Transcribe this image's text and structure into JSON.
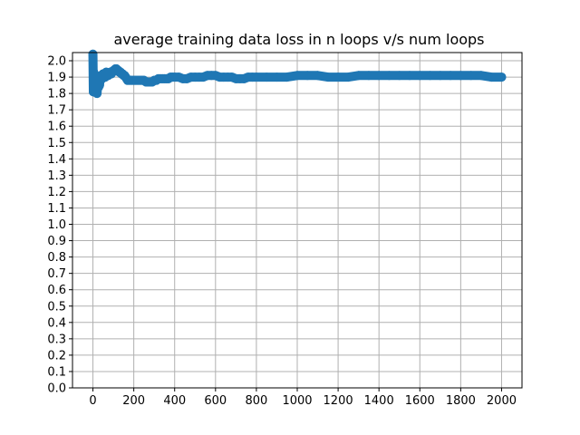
{
  "chart_data": {
    "type": "scatter",
    "title": "average training data loss in n loops v/s num loops",
    "xlabel": "",
    "ylabel": "",
    "xlim": [
      -100,
      2100
    ],
    "ylim": [
      0.0,
      2.05
    ],
    "x_ticks": [
      0,
      200,
      400,
      600,
      800,
      1000,
      1200,
      1400,
      1600,
      1800,
      2000
    ],
    "y_ticks": [
      0.0,
      0.1,
      0.2,
      0.3,
      0.4,
      0.5,
      0.6,
      0.7,
      0.8,
      0.9,
      1.0,
      1.1,
      1.2,
      1.3,
      1.4,
      1.5,
      1.6,
      1.7,
      1.8,
      1.9,
      2.0
    ],
    "grid": true,
    "series": [
      {
        "color": "#1f77b4",
        "points": [
          [
            0,
            2.04
          ],
          [
            2,
            1.81
          ],
          [
            4,
            1.93
          ],
          [
            6,
            1.88
          ],
          [
            8,
            1.87
          ],
          [
            10,
            1.9
          ],
          [
            12,
            1.84
          ],
          [
            15,
            1.86
          ],
          [
            18,
            1.82
          ],
          [
            20,
            1.8
          ],
          [
            22,
            1.83
          ],
          [
            25,
            1.86
          ],
          [
            28,
            1.84
          ],
          [
            30,
            1.87
          ],
          [
            32,
            1.85
          ],
          [
            35,
            1.88
          ],
          [
            38,
            1.9
          ],
          [
            40,
            1.91
          ],
          [
            45,
            1.89
          ],
          [
            50,
            1.92
          ],
          [
            55,
            1.91
          ],
          [
            60,
            1.9
          ],
          [
            65,
            1.93
          ],
          [
            70,
            1.92
          ],
          [
            75,
            1.91
          ],
          [
            80,
            1.92
          ],
          [
            85,
            1.93
          ],
          [
            90,
            1.92
          ],
          [
            95,
            1.93
          ],
          [
            100,
            1.94
          ],
          [
            105,
            1.94
          ],
          [
            110,
            1.95
          ],
          [
            115,
            1.95
          ],
          [
            120,
            1.94
          ],
          [
            125,
            1.94
          ],
          [
            130,
            1.93
          ],
          [
            135,
            1.93
          ],
          [
            140,
            1.92
          ],
          [
            145,
            1.92
          ],
          [
            150,
            1.91
          ],
          [
            155,
            1.91
          ],
          [
            160,
            1.9
          ],
          [
            165,
            1.89
          ],
          [
            170,
            1.88
          ],
          [
            180,
            1.88
          ],
          [
            190,
            1.88
          ],
          [
            200,
            1.88
          ],
          [
            210,
            1.88
          ],
          [
            220,
            1.88
          ],
          [
            230,
            1.88
          ],
          [
            240,
            1.88
          ],
          [
            250,
            1.88
          ],
          [
            260,
            1.87
          ],
          [
            270,
            1.87
          ],
          [
            280,
            1.87
          ],
          [
            290,
            1.87
          ],
          [
            300,
            1.88
          ],
          [
            310,
            1.88
          ],
          [
            320,
            1.89
          ],
          [
            330,
            1.89
          ],
          [
            340,
            1.89
          ],
          [
            350,
            1.89
          ],
          [
            360,
            1.89
          ],
          [
            370,
            1.89
          ],
          [
            380,
            1.9
          ],
          [
            390,
            1.9
          ],
          [
            400,
            1.9
          ],
          [
            420,
            1.9
          ],
          [
            440,
            1.89
          ],
          [
            460,
            1.89
          ],
          [
            480,
            1.9
          ],
          [
            500,
            1.9
          ],
          [
            520,
            1.9
          ],
          [
            540,
            1.9
          ],
          [
            560,
            1.91
          ],
          [
            580,
            1.91
          ],
          [
            600,
            1.91
          ],
          [
            620,
            1.9
          ],
          [
            640,
            1.9
          ],
          [
            660,
            1.9
          ],
          [
            680,
            1.9
          ],
          [
            700,
            1.89
          ],
          [
            720,
            1.89
          ],
          [
            740,
            1.89
          ],
          [
            760,
            1.9
          ],
          [
            780,
            1.9
          ],
          [
            800,
            1.9
          ],
          [
            850,
            1.9
          ],
          [
            900,
            1.9
          ],
          [
            950,
            1.9
          ],
          [
            1000,
            1.91
          ],
          [
            1050,
            1.91
          ],
          [
            1100,
            1.91
          ],
          [
            1150,
            1.9
          ],
          [
            1200,
            1.9
          ],
          [
            1250,
            1.9
          ],
          [
            1300,
            1.91
          ],
          [
            1350,
            1.91
          ],
          [
            1400,
            1.91
          ],
          [
            1450,
            1.91
          ],
          [
            1500,
            1.91
          ],
          [
            1550,
            1.91
          ],
          [
            1600,
            1.91
          ],
          [
            1650,
            1.91
          ],
          [
            1700,
            1.91
          ],
          [
            1750,
            1.91
          ],
          [
            1800,
            1.91
          ],
          [
            1850,
            1.91
          ],
          [
            1900,
            1.91
          ],
          [
            1950,
            1.9
          ],
          [
            2000,
            1.9
          ]
        ]
      }
    ]
  }
}
